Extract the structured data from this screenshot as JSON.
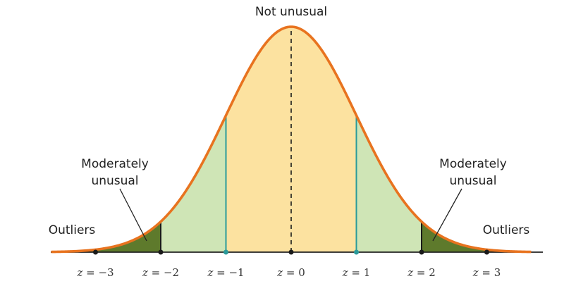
{
  "labels": {
    "center": "Not unusual",
    "moderately_left_line1": "Moderately",
    "moderately_left_line2": "unusual",
    "moderately_right_line1": "Moderately",
    "moderately_right_line2": "unusual",
    "outliers_left": "Outliers",
    "outliers_right": "Outliers"
  },
  "ticks": [
    {
      "var": "z",
      "eq": " = ",
      "value": "−3"
    },
    {
      "var": "z",
      "eq": " = ",
      "value": "−2"
    },
    {
      "var": "z",
      "eq": " = ",
      "value": "−1"
    },
    {
      "var": "z",
      "eq": " = ",
      "value": "0"
    },
    {
      "var": "z",
      "eq": " = ",
      "value": "1"
    },
    {
      "var": "z",
      "eq": " = ",
      "value": "2"
    },
    {
      "var": "z",
      "eq": " = ",
      "value": "3"
    }
  ],
  "colors": {
    "curve": "#e8731f",
    "center_region": "#fce2a0",
    "moderate_region": "#cfe5b6",
    "outlier_region": "#5e7a2c",
    "dividers_inner": "#2a9a9a",
    "dividers_outer": "#1a1a1a",
    "axis": "#222222"
  }
}
